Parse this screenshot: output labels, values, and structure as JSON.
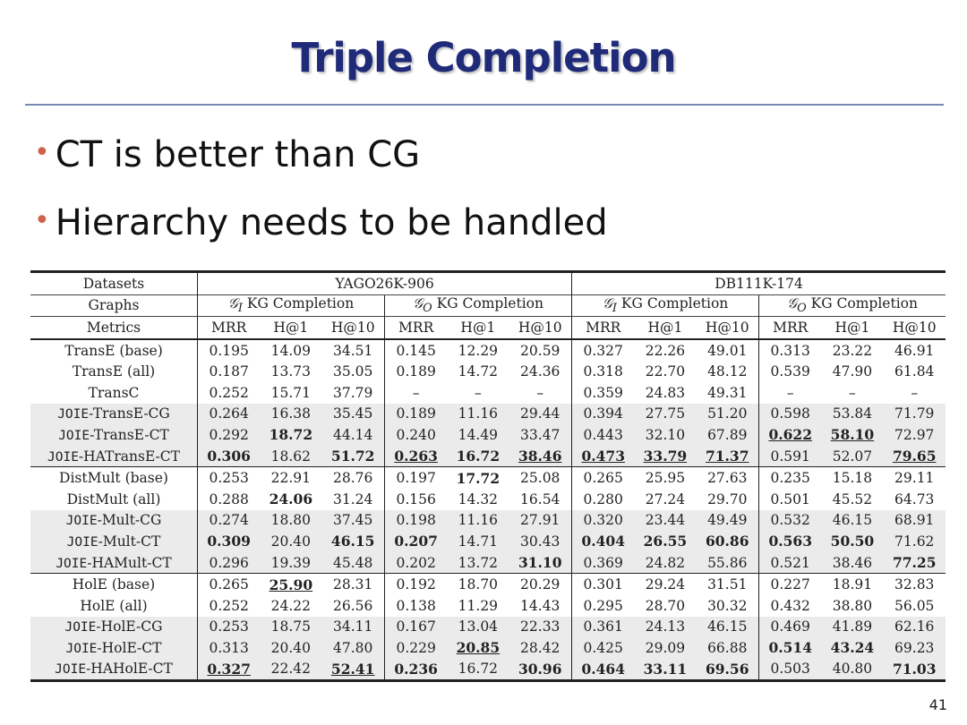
{
  "title": "Triple Completion",
  "bullets": [
    "CT is better than CG",
    "Hierarchy needs to be handled"
  ],
  "page_number": "41",
  "table": {
    "row_datasets_label": "Datasets",
    "row_graphs_label": "Graphs",
    "row_metrics_label": "Metrics",
    "datasets": [
      "YAGO26K-906",
      "DB111K-174"
    ],
    "graph_prefix_i": "𝒢",
    "graph_sub_i": "I",
    "graph_prefix_o": "𝒢",
    "graph_sub_o": "O",
    "graph_suffix": " KG Completion",
    "metrics": [
      "MRR",
      "H@1",
      "H@10",
      "MRR",
      "H@1",
      "H@10",
      "MRR",
      "H@1",
      "H@10",
      "MRR",
      "H@1",
      "H@10"
    ],
    "groups": [
      {
        "rows": [
          {
            "prefix": "",
            "name": "TransE (base)",
            "shade": false,
            "cells": [
              [
                "0.195",
                ""
              ],
              [
                "14.09",
                ""
              ],
              [
                "34.51",
                ""
              ],
              [
                "0.145",
                ""
              ],
              [
                "12.29",
                ""
              ],
              [
                "20.59",
                ""
              ],
              [
                "0.327",
                ""
              ],
              [
                "22.26",
                ""
              ],
              [
                "49.01",
                ""
              ],
              [
                "0.313",
                ""
              ],
              [
                "23.22",
                ""
              ],
              [
                "46.91",
                ""
              ]
            ]
          },
          {
            "prefix": "",
            "name": "TransE (all)",
            "shade": false,
            "cells": [
              [
                "0.187",
                ""
              ],
              [
                "13.73",
                ""
              ],
              [
                "35.05",
                ""
              ],
              [
                "0.189",
                ""
              ],
              [
                "14.72",
                ""
              ],
              [
                "24.36",
                ""
              ],
              [
                "0.318",
                ""
              ],
              [
                "22.70",
                ""
              ],
              [
                "48.12",
                ""
              ],
              [
                "0.539",
                ""
              ],
              [
                "47.90",
                ""
              ],
              [
                "61.84",
                ""
              ]
            ]
          },
          {
            "prefix": "",
            "name": "TransC",
            "shade": false,
            "cells": [
              [
                "0.252",
                ""
              ],
              [
                "15.71",
                ""
              ],
              [
                "37.79",
                ""
              ],
              [
                "–",
                ""
              ],
              [
                "–",
                ""
              ],
              [
                "–",
                ""
              ],
              [
                "0.359",
                ""
              ],
              [
                "24.83",
                ""
              ],
              [
                "49.31",
                ""
              ],
              [
                "–",
                ""
              ],
              [
                "–",
                ""
              ],
              [
                "–",
                ""
              ]
            ]
          },
          {
            "prefix": "JOIE",
            "name": "-TransE-CG",
            "shade": true,
            "cells": [
              [
                "0.264",
                ""
              ],
              [
                "16.38",
                ""
              ],
              [
                "35.45",
                ""
              ],
              [
                "0.189",
                ""
              ],
              [
                "11.16",
                ""
              ],
              [
                "29.44",
                ""
              ],
              [
                "0.394",
                ""
              ],
              [
                "27.75",
                ""
              ],
              [
                "51.20",
                ""
              ],
              [
                "0.598",
                ""
              ],
              [
                "53.84",
                ""
              ],
              [
                "71.79",
                ""
              ]
            ]
          },
          {
            "prefix": "JOIE",
            "name": "-TransE-CT",
            "shade": true,
            "cells": [
              [
                "0.292",
                ""
              ],
              [
                "18.72",
                "b"
              ],
              [
                "44.14",
                ""
              ],
              [
                "0.240",
                ""
              ],
              [
                "14.49",
                ""
              ],
              [
                "33.47",
                ""
              ],
              [
                "0.443",
                ""
              ],
              [
                "32.10",
                ""
              ],
              [
                "67.89",
                ""
              ],
              [
                "0.622",
                "bu"
              ],
              [
                "58.10",
                "bu"
              ],
              [
                "72.97",
                ""
              ]
            ]
          },
          {
            "prefix": "JOIE",
            "name": "-HATransE-CT",
            "shade": true,
            "cells": [
              [
                "0.306",
                "b"
              ],
              [
                "18.62",
                ""
              ],
              [
                "51.72",
                "b"
              ],
              [
                "0.263",
                "bu"
              ],
              [
                "16.72",
                "b"
              ],
              [
                "38.46",
                "bu"
              ],
              [
                "0.473",
                "bu"
              ],
              [
                "33.79",
                "bu"
              ],
              [
                "71.37",
                "bu"
              ],
              [
                "0.591",
                ""
              ],
              [
                "52.07",
                ""
              ],
              [
                "79.65",
                "bu"
              ]
            ]
          }
        ]
      },
      {
        "rows": [
          {
            "prefix": "",
            "name": "DistMult (base)",
            "shade": false,
            "cells": [
              [
                "0.253",
                ""
              ],
              [
                "22.91",
                ""
              ],
              [
                "28.76",
                ""
              ],
              [
                "0.197",
                ""
              ],
              [
                "17.72",
                "b"
              ],
              [
                "25.08",
                ""
              ],
              [
                "0.265",
                ""
              ],
              [
                "25.95",
                ""
              ],
              [
                "27.63",
                ""
              ],
              [
                "0.235",
                ""
              ],
              [
                "15.18",
                ""
              ],
              [
                "29.11",
                ""
              ]
            ]
          },
          {
            "prefix": "",
            "name": "DistMult (all)",
            "shade": false,
            "cells": [
              [
                "0.288",
                ""
              ],
              [
                "24.06",
                "b"
              ],
              [
                "31.24",
                ""
              ],
              [
                "0.156",
                ""
              ],
              [
                "14.32",
                ""
              ],
              [
                "16.54",
                ""
              ],
              [
                "0.280",
                ""
              ],
              [
                "27.24",
                ""
              ],
              [
                "29.70",
                ""
              ],
              [
                "0.501",
                ""
              ],
              [
                "45.52",
                ""
              ],
              [
                "64.73",
                ""
              ]
            ]
          },
          {
            "prefix": "JOIE",
            "name": "-Mult-CG",
            "shade": true,
            "cells": [
              [
                "0.274",
                ""
              ],
              [
                "18.80",
                ""
              ],
              [
                "37.45",
                ""
              ],
              [
                "0.198",
                ""
              ],
              [
                "11.16",
                ""
              ],
              [
                "27.91",
                ""
              ],
              [
                "0.320",
                ""
              ],
              [
                "23.44",
                ""
              ],
              [
                "49.49",
                ""
              ],
              [
                "0.532",
                ""
              ],
              [
                "46.15",
                ""
              ],
              [
                "68.91",
                ""
              ]
            ]
          },
          {
            "prefix": "JOIE",
            "name": "-Mult-CT",
            "shade": true,
            "cells": [
              [
                "0.309",
                "b"
              ],
              [
                "20.40",
                ""
              ],
              [
                "46.15",
                "b"
              ],
              [
                "0.207",
                "b"
              ],
              [
                "14.71",
                ""
              ],
              [
                "30.43",
                ""
              ],
              [
                "0.404",
                "b"
              ],
              [
                "26.55",
                "b"
              ],
              [
                "60.86",
                "b"
              ],
              [
                "0.563",
                "b"
              ],
              [
                "50.50",
                "b"
              ],
              [
                "71.62",
                ""
              ]
            ]
          },
          {
            "prefix": "JOIE",
            "name": "-HAMult-CT",
            "shade": true,
            "cells": [
              [
                "0.296",
                ""
              ],
              [
                "19.39",
                ""
              ],
              [
                "45.48",
                ""
              ],
              [
                "0.202",
                ""
              ],
              [
                "13.72",
                ""
              ],
              [
                "31.10",
                "b"
              ],
              [
                "0.369",
                ""
              ],
              [
                "24.82",
                ""
              ],
              [
                "55.86",
                ""
              ],
              [
                "0.521",
                ""
              ],
              [
                "38.46",
                ""
              ],
              [
                "77.25",
                "b"
              ]
            ]
          }
        ]
      },
      {
        "rows": [
          {
            "prefix": "",
            "name": "HolE (base)",
            "shade": false,
            "cells": [
              [
                "0.265",
                ""
              ],
              [
                "25.90",
                "bu"
              ],
              [
                "28.31",
                ""
              ],
              [
                "0.192",
                ""
              ],
              [
                "18.70",
                ""
              ],
              [
                "20.29",
                ""
              ],
              [
                "0.301",
                ""
              ],
              [
                "29.24",
                ""
              ],
              [
                "31.51",
                ""
              ],
              [
                "0.227",
                ""
              ],
              [
                "18.91",
                ""
              ],
              [
                "32.83",
                ""
              ]
            ]
          },
          {
            "prefix": "",
            "name": "HolE (all)",
            "shade": false,
            "cells": [
              [
                "0.252",
                ""
              ],
              [
                "24.22",
                ""
              ],
              [
                "26.56",
                ""
              ],
              [
                "0.138",
                ""
              ],
              [
                "11.29",
                ""
              ],
              [
                "14.43",
                ""
              ],
              [
                "0.295",
                ""
              ],
              [
                "28.70",
                ""
              ],
              [
                "30.32",
                ""
              ],
              [
                "0.432",
                ""
              ],
              [
                "38.80",
                ""
              ],
              [
                "56.05",
                ""
              ]
            ]
          },
          {
            "prefix": "JOIE",
            "name": "-HolE-CG",
            "shade": true,
            "cells": [
              [
                "0.253",
                ""
              ],
              [
                "18.75",
                ""
              ],
              [
                "34.11",
                ""
              ],
              [
                "0.167",
                ""
              ],
              [
                "13.04",
                ""
              ],
              [
                "22.33",
                ""
              ],
              [
                "0.361",
                ""
              ],
              [
                "24.13",
                ""
              ],
              [
                "46.15",
                ""
              ],
              [
                "0.469",
                ""
              ],
              [
                "41.89",
                ""
              ],
              [
                "62.16",
                ""
              ]
            ]
          },
          {
            "prefix": "JOIE",
            "name": "-HolE-CT",
            "shade": true,
            "cells": [
              [
                "0.313",
                ""
              ],
              [
                "20.40",
                ""
              ],
              [
                "47.80",
                ""
              ],
              [
                "0.229",
                ""
              ],
              [
                "20.85",
                "bu"
              ],
              [
                "28.42",
                ""
              ],
              [
                "0.425",
                ""
              ],
              [
                "29.09",
                ""
              ],
              [
                "66.88",
                ""
              ],
              [
                "0.514",
                "b"
              ],
              [
                "43.24",
                "b"
              ],
              [
                "69.23",
                ""
              ]
            ]
          },
          {
            "prefix": "JOIE",
            "name": "-HAHolE-CT",
            "shade": true,
            "cells": [
              [
                "0.327",
                "bu"
              ],
              [
                "22.42",
                ""
              ],
              [
                "52.41",
                "bu"
              ],
              [
                "0.236",
                "b"
              ],
              [
                "16.72",
                ""
              ],
              [
                "30.96",
                "b"
              ],
              [
                "0.464",
                "b"
              ],
              [
                "33.11",
                "b"
              ],
              [
                "69.56",
                "b"
              ],
              [
                "0.503",
                ""
              ],
              [
                "40.80",
                ""
              ],
              [
                "71.03",
                "b"
              ]
            ]
          }
        ]
      }
    ]
  }
}
